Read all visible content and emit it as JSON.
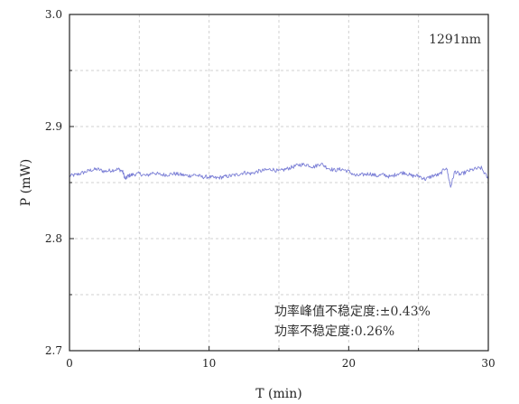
{
  "chart_data": {
    "type": "line",
    "title": "",
    "xlabel": "T (min)",
    "ylabel": "P (mW)",
    "xlim": [
      0,
      30
    ],
    "ylim": [
      2.7,
      3.0
    ],
    "xticks": [
      0,
      10,
      20,
      30
    ],
    "yticks": [
      2.7,
      2.8,
      2.9,
      3.0
    ],
    "xtick_labels": [
      "0",
      "10",
      "20",
      "30"
    ],
    "ytick_labels": [
      "2.7",
      "2.8",
      "2.9",
      "3.0"
    ],
    "grid": true,
    "legend": "none",
    "annotations": {
      "wavelength": "1291nm",
      "peak_instability": "功率峰值不稳定度:±0.43%",
      "instability": "功率不稳定度:0.26%"
    },
    "series": [
      {
        "color": "#7b7fd6",
        "x": [
          0,
          0.5,
          1,
          1.5,
          2,
          2.5,
          3,
          3.5,
          3.8,
          4.0,
          4.2,
          4.5,
          5,
          5.5,
          6,
          6.5,
          7,
          7.5,
          8,
          8.5,
          9,
          9.5,
          10,
          10.5,
          11,
          11.5,
          12,
          12.5,
          13,
          13.5,
          14,
          14.5,
          15,
          15.5,
          16,
          16.5,
          17,
          17.5,
          18,
          18.5,
          19,
          19.5,
          20,
          20.5,
          21,
          21.5,
          22,
          22.5,
          23,
          23.5,
          24,
          24.5,
          25,
          25.5,
          26,
          26.5,
          27,
          27.3,
          27.6,
          28,
          28.5,
          29,
          29.5,
          30
        ],
        "values": [
          2.856,
          2.857,
          2.859,
          2.861,
          2.862,
          2.86,
          2.861,
          2.862,
          2.86,
          2.853,
          2.856,
          2.857,
          2.858,
          2.856,
          2.859,
          2.857,
          2.857,
          2.858,
          2.857,
          2.856,
          2.857,
          2.855,
          2.855,
          2.854,
          2.855,
          2.856,
          2.857,
          2.859,
          2.858,
          2.86,
          2.861,
          2.862,
          2.86,
          2.862,
          2.864,
          2.866,
          2.866,
          2.864,
          2.867,
          2.863,
          2.861,
          2.862,
          2.86,
          2.856,
          2.857,
          2.858,
          2.856,
          2.857,
          2.855,
          2.858,
          2.859,
          2.856,
          2.856,
          2.853,
          2.856,
          2.857,
          2.864,
          2.846,
          2.86,
          2.857,
          2.86,
          2.862,
          2.863,
          2.853
        ]
      }
    ]
  }
}
